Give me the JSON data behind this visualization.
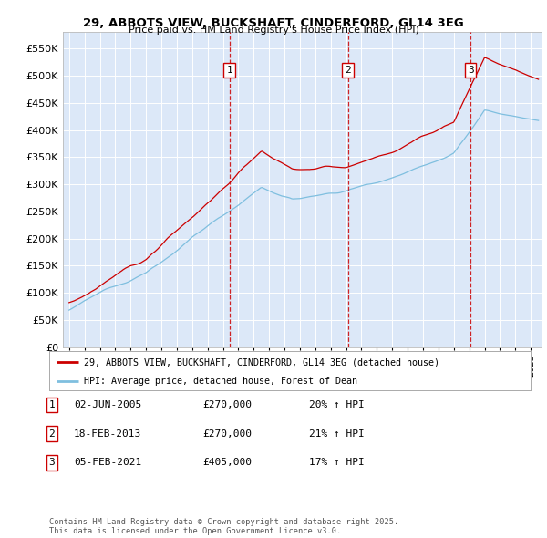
{
  "title_line1": "29, ABBOTS VIEW, BUCKSHAFT, CINDERFORD, GL14 3EG",
  "title_line2": "Price paid vs. HM Land Registry's House Price Index (HPI)",
  "plot_bg_color": "#dce8f8",
  "ylim": [
    0,
    580000
  ],
  "yticks": [
    0,
    50000,
    100000,
    150000,
    200000,
    250000,
    300000,
    350000,
    400000,
    450000,
    500000,
    550000
  ],
  "ytick_labels": [
    "£0",
    "£50K",
    "£100K",
    "£150K",
    "£200K",
    "£250K",
    "£300K",
    "£350K",
    "£400K",
    "£450K",
    "£500K",
    "£550K"
  ],
  "xlim_start": 1994.6,
  "xlim_end": 2025.7,
  "hpi_color": "#7fbfdf",
  "price_color": "#cc0000",
  "vline_color": "#cc0000",
  "sale_dates": [
    2005.42,
    2013.12,
    2021.09
  ],
  "sale_labels": [
    "1",
    "2",
    "3"
  ],
  "legend_line1": "29, ABBOTS VIEW, BUCKSHAFT, CINDERFORD, GL14 3EG (detached house)",
  "legend_line2": "HPI: Average price, detached house, Forest of Dean",
  "table_entries": [
    {
      "num": "1",
      "date": "02-JUN-2005",
      "price": "£270,000",
      "hpi": "20% ↑ HPI"
    },
    {
      "num": "2",
      "date": "18-FEB-2013",
      "price": "£270,000",
      "hpi": "21% ↑ HPI"
    },
    {
      "num": "3",
      "date": "05-FEB-2021",
      "price": "£405,000",
      "hpi": "17% ↑ HPI"
    }
  ],
  "footer": "Contains HM Land Registry data © Crown copyright and database right 2025.\nThis data is licensed under the Open Government Licence v3.0."
}
